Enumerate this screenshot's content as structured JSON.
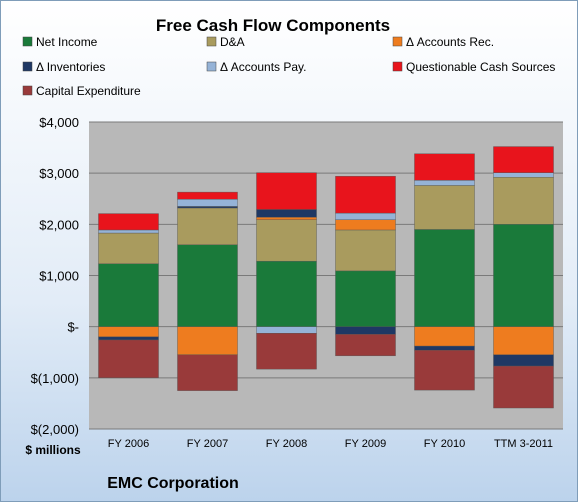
{
  "chart_data": {
    "type": "bar",
    "stacked": true,
    "title": "Free Cash Flow Components",
    "units_label": "$ millions",
    "company_label": "EMC Corporation",
    "categories": [
      "FY 2006",
      "FY 2007",
      "FY 2008",
      "FY 2009",
      "FY 2010",
      "TTM 3-2011"
    ],
    "ylim": [
      -2000,
      4000
    ],
    "yticks": [
      {
        "value": 4000,
        "label": "$4,000"
      },
      {
        "value": 3000,
        "label": "$3,000"
      },
      {
        "value": 2000,
        "label": "$2,000"
      },
      {
        "value": 1000,
        "label": "$1,000"
      },
      {
        "value": 0,
        "label": "$-"
      },
      {
        "value": -1000,
        "label": "$(1,000)"
      },
      {
        "value": -2000,
        "label": "$(2,000)"
      }
    ],
    "grid": true,
    "legend_position": "top",
    "series": [
      {
        "name": "Net Income",
        "color": "#1a7a3a",
        "values": [
          1230,
          1600,
          1280,
          1090,
          1900,
          2000
        ]
      },
      {
        "name": "D&A",
        "color": "#a99b5e",
        "values": [
          600,
          720,
          810,
          800,
          860,
          920
        ]
      },
      {
        "name": "Δ Accounts Rec.",
        "color": "#ee7c1f",
        "values": [
          -200,
          -550,
          50,
          200,
          -380,
          -550
        ]
      },
      {
        "name": "Δ Inventories",
        "color": "#1f3864",
        "values": [
          -60,
          30,
          150,
          -150,
          -80,
          -220
        ]
      },
      {
        "name": "Δ Accounts Pay.",
        "color": "#95b3d7",
        "values": [
          60,
          140,
          -130,
          130,
          100,
          90
        ]
      },
      {
        "name": "Questionable Cash Sources",
        "color": "#e8141c",
        "values": [
          320,
          140,
          720,
          720,
          520,
          510
        ]
      },
      {
        "name": "Capital Expenditure",
        "color": "#993a3a",
        "values": [
          -740,
          -700,
          -700,
          -420,
          -780,
          -820
        ]
      }
    ]
  }
}
